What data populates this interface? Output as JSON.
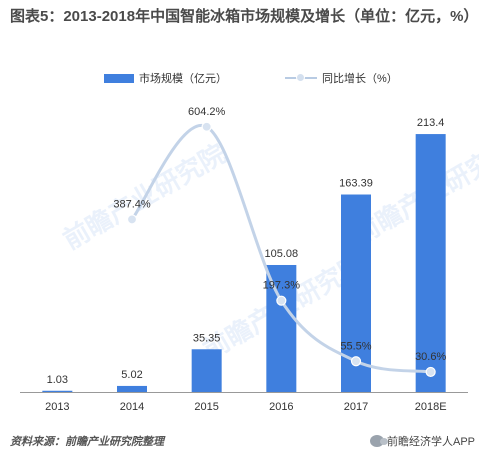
{
  "title": "图表5：2013-2018年中国智能冰箱市场规模及增长（单位：亿元，%）",
  "source": "资料来源：前瞻产业研究院整理",
  "footer_brand": "前瞻经济学人APP",
  "watermark": "前瞻产业研究院",
  "chart_data": {
    "type": "bar+line",
    "categories": [
      "2013",
      "2014",
      "2015",
      "2016",
      "2017",
      "2018E"
    ],
    "series": [
      {
        "name": "市场规模（亿元）",
        "type": "bar",
        "axis": "left",
        "color": "#3f7fde",
        "values": [
          1.03,
          5.02,
          35.35,
          105.08,
          163.39,
          213.4
        ],
        "labels": [
          "1.03",
          "5.02",
          "35.35",
          "105.08",
          "163.39",
          "213.4"
        ]
      },
      {
        "name": "同比增长（%）",
        "type": "line",
        "smooth": true,
        "axis": "right",
        "color": "#b8cbe3",
        "values": [
          null,
          387.4,
          604.2,
          197.3,
          55.5,
          30.6
        ],
        "labels": [
          "",
          "387.4%",
          "604.2%",
          "197.3%",
          "55.5%",
          "30.6%"
        ]
      }
    ],
    "ylim_left": [
      0,
      230
    ],
    "ylim_right": [
      0,
      620
    ],
    "grid": false,
    "legend": "top-center"
  }
}
